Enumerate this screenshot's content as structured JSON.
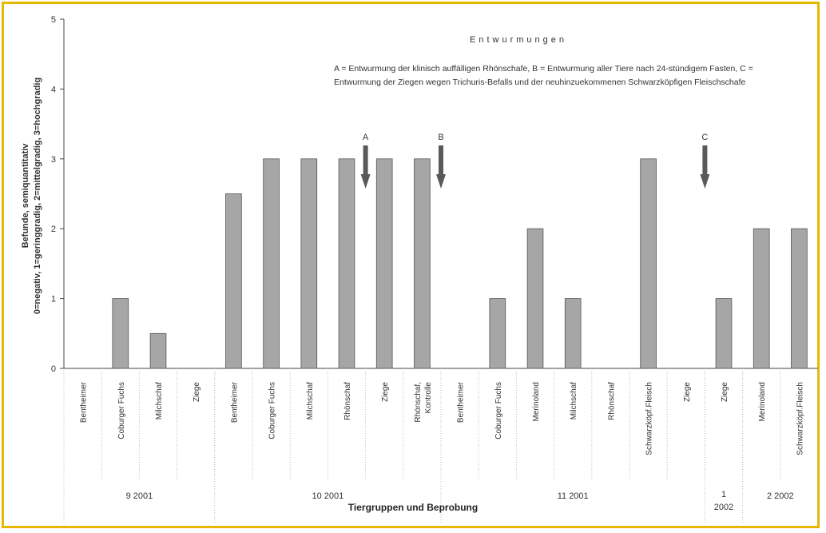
{
  "chart_data": {
    "type": "bar",
    "title": "Entwurmungen",
    "annotation": "A = Entwurmung der klinisch auffälligen Rhönschafe, B = Entwurmung aller Tiere nach 24-stündigem Fasten, C = Entwurmung der Ziegen wegen Trichuris-Befalls und der neuhinzuekommenen Schwarzköpfigen Fleischschafe",
    "ylabel": "Befunde, semiquantitativ\n0=negativ, 1=geringgradig, 2=mittelgradig, 3=hochgradig",
    "xlabel": "Tiergruppen und Beprobung",
    "ylim": [
      0,
      5
    ],
    "yticks": [
      "0",
      "1",
      "2",
      "3",
      "4",
      "5"
    ],
    "categories": [
      "Bentheimer",
      "Coburger Fuchs",
      "Milchschaf",
      "Ziege",
      "Bentheimer",
      "Coburger Fuchs",
      "Milchschaf",
      "Rhönschaf",
      "Ziege",
      "Rhönschaf, Kontrolle",
      "Bentheimer",
      "Coburger Fuchs",
      "Merinoland",
      "Milchschaf",
      "Rhönschaf",
      "Schwarzköpf.Fleisch",
      "Ziege",
      "Ziege",
      "Merinoland",
      "Schwarzköpf.Fleisch"
    ],
    "values": [
      0,
      1,
      0.5,
      0,
      2.5,
      3,
      3,
      3,
      3,
      3,
      0,
      1,
      2,
      1,
      0,
      3,
      0,
      1,
      2,
      2
    ],
    "groups": [
      {
        "label": "9 2001",
        "start": 0,
        "end": 3
      },
      {
        "label": "10 2001",
        "start": 4,
        "end": 9
      },
      {
        "label": "11 2001",
        "start": 10,
        "end": 16
      },
      {
        "label": "1 2002",
        "start": 17,
        "end": 17
      },
      {
        "label": "2 2002",
        "start": 18,
        "end": 19
      }
    ],
    "markers": [
      {
        "label": "A",
        "after_index": 7
      },
      {
        "label": "B",
        "after_index": 9
      },
      {
        "label": "C",
        "after_index": 16
      }
    ],
    "bar_color": "#a6a6a6",
    "marker_color": "#595959",
    "grid": false
  }
}
